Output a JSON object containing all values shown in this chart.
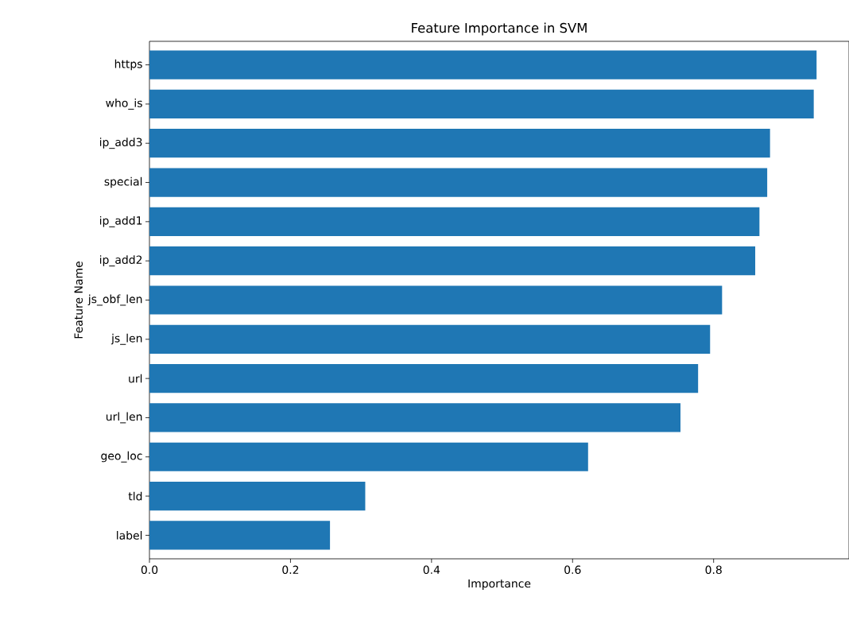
{
  "chart_data": {
    "type": "bar",
    "orientation": "horizontal",
    "title": "Feature Importance in SVM",
    "xlabel": "Importance",
    "ylabel": "Feature Name",
    "categories": [
      "https",
      "who_is",
      "ip_add3",
      "special",
      "ip_add1",
      "ip_add2",
      "js_obf_len",
      "js_len",
      "url",
      "url_len",
      "geo_loc",
      "tld",
      "label"
    ],
    "values": [
      0.946,
      0.942,
      0.88,
      0.876,
      0.865,
      0.859,
      0.812,
      0.795,
      0.778,
      0.753,
      0.622,
      0.306,
      0.256
    ],
    "color": "#1f77b4",
    "xlim": [
      0,
      0.992
    ],
    "xticks": [
      {
        "value": 0,
        "label": "0.0"
      },
      0.2,
      0.4,
      0.6,
      0.8
    ],
    "grid": false
  }
}
